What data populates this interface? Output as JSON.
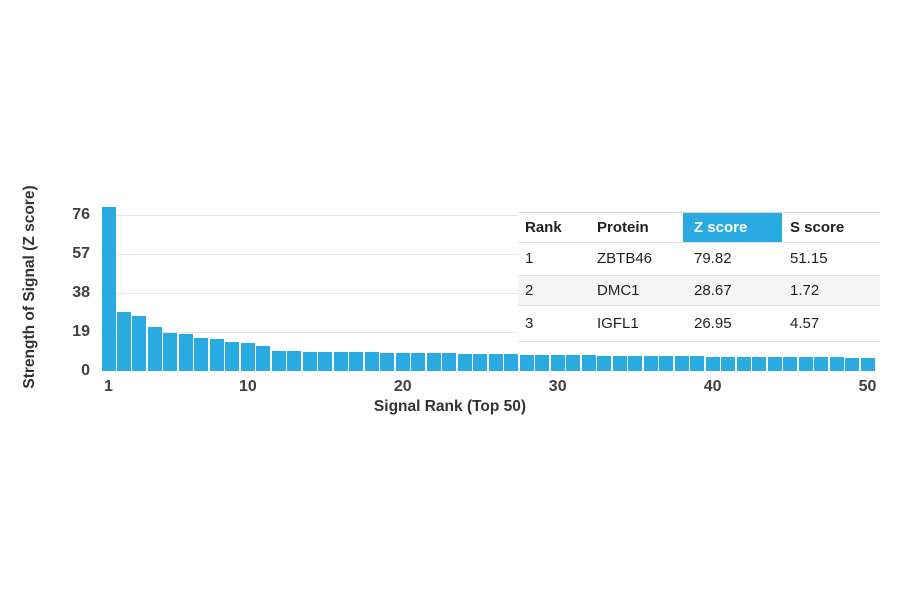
{
  "chart_data": {
    "type": "bar",
    "title": "",
    "ylabel": "Strength of Signal (Z score)",
    "xlabel": "Signal Rank (Top 50)",
    "y_ticks": [
      0,
      19,
      38,
      57,
      76
    ],
    "x_ticks": [
      1,
      10,
      20,
      30,
      40,
      50
    ],
    "ylim": [
      0,
      83
    ],
    "grid": "horizontal",
    "legend": "none",
    "bar_color": "#29ABE2",
    "categories_note": "signal rank 1 through 50",
    "values": [
      79.82,
      28.67,
      26.95,
      21.6,
      18.7,
      17.9,
      16.1,
      15.8,
      14.3,
      13.8,
      12.2,
      9.8,
      9.6,
      9.5,
      9.4,
      9.3,
      9.2,
      9.1,
      9.0,
      8.9,
      8.8,
      8.7,
      8.6,
      8.5,
      8.4,
      8.2,
      8.1,
      8.0,
      7.9,
      7.8,
      7.7,
      7.6,
      7.5,
      7.4,
      7.3,
      7.2,
      7.2,
      7.1,
      7.1,
      7.0,
      7.0,
      6.9,
      6.9,
      6.8,
      6.8,
      6.7,
      6.7,
      6.6,
      6.5,
      6.5
    ]
  },
  "table": {
    "columns": [
      "Rank",
      "Protein",
      "Z score",
      "S score"
    ],
    "highlight_column": "Z score",
    "highlight_color": "#29ABE2",
    "rows": [
      [
        "1",
        "ZBTB46",
        "79.82",
        "51.15"
      ],
      [
        "2",
        "DMC1",
        "28.67",
        "1.72"
      ],
      [
        "3",
        "IGFL1",
        "26.95",
        "4.57"
      ]
    ]
  }
}
